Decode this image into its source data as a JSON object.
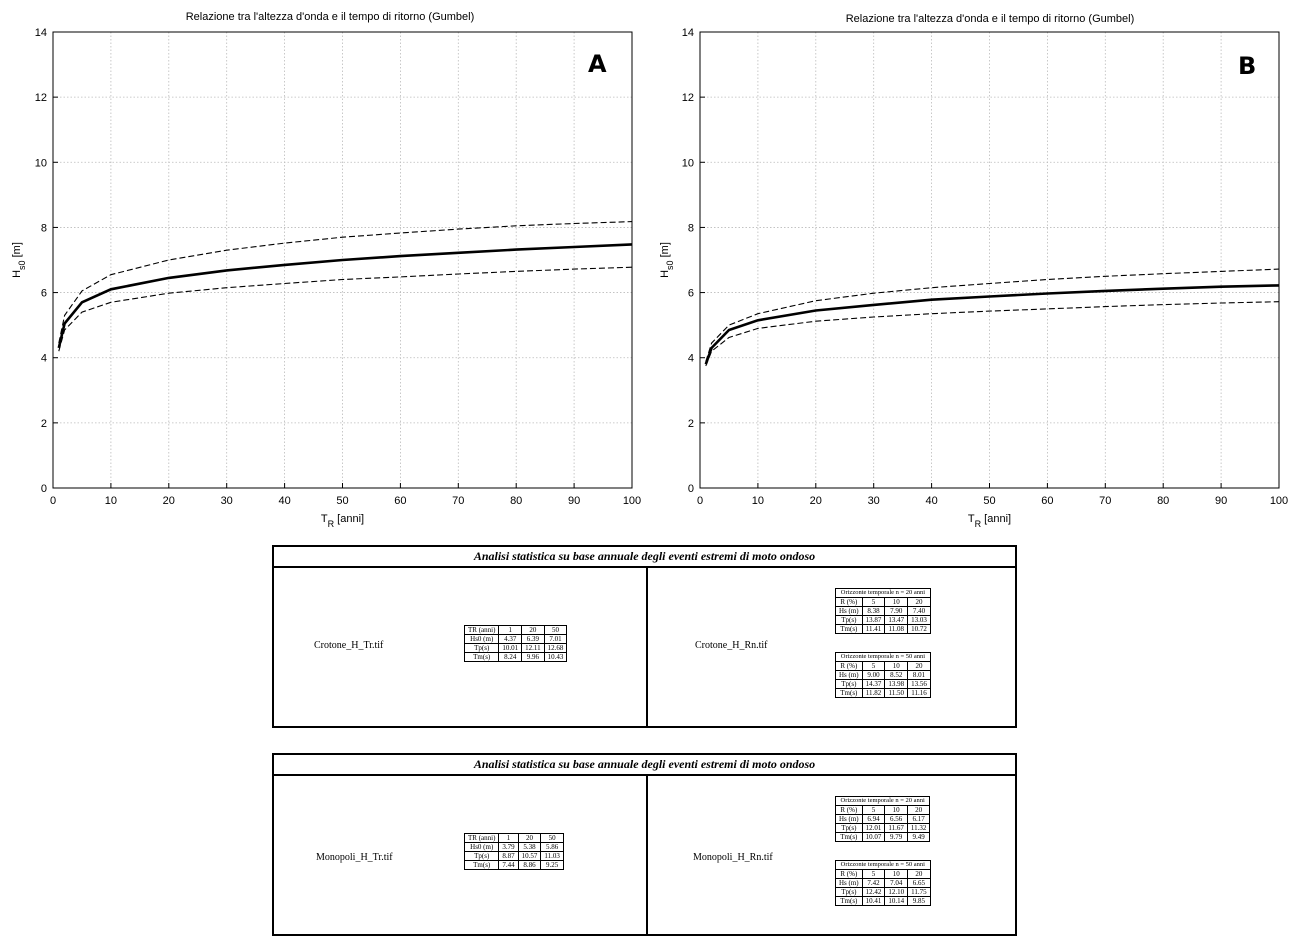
{
  "charts": [
    {
      "id": "A",
      "title": "Relazione tra l'altezza d'onda e il tempo di ritorno (Gumbel)",
      "panel_label": "A",
      "ylabel": "Hs0 [m]",
      "xlabel": "TR [anni]"
    },
    {
      "id": "B",
      "title": "Relazione tra l'altezza d'onda e il tempo di ritorno (Gumbel)",
      "panel_label": "B",
      "ylabel": "Hs0 [m]",
      "xlabel": "TR [anni]"
    }
  ],
  "chart_data": [
    {
      "type": "line",
      "title": "Relazione tra l'altezza d'onda e il tempo di ritorno (Gumbel)",
      "xlabel": "TR [anni]",
      "ylabel": "Hs0 [m]",
      "xlim": [
        0,
        100
      ],
      "ylim": [
        0,
        14
      ],
      "xticks": [
        0,
        10,
        20,
        30,
        40,
        50,
        60,
        70,
        80,
        90,
        100
      ],
      "yticks": [
        0,
        2,
        4,
        6,
        8,
        10,
        12,
        14
      ],
      "grid": true,
      "x": [
        1,
        2,
        5,
        10,
        20,
        30,
        40,
        50,
        60,
        70,
        80,
        90,
        100
      ],
      "series": [
        {
          "style": "solid-thick",
          "values": [
            4.3,
            5.05,
            5.7,
            6.1,
            6.45,
            6.68,
            6.85,
            7.0,
            7.12,
            7.22,
            7.32,
            7.4,
            7.48
          ]
        },
        {
          "style": "dashed-upper",
          "values": [
            4.45,
            5.3,
            6.05,
            6.55,
            7.0,
            7.3,
            7.52,
            7.7,
            7.83,
            7.95,
            8.05,
            8.12,
            8.18
          ]
        },
        {
          "style": "dashed-lower",
          "values": [
            4.2,
            4.85,
            5.4,
            5.7,
            5.98,
            6.15,
            6.28,
            6.4,
            6.48,
            6.57,
            6.65,
            6.72,
            6.78
          ]
        }
      ]
    },
    {
      "type": "line",
      "title": "Relazione tra l'altezza d'onda e il tempo di ritorno (Gumbel)",
      "xlabel": "TR [anni]",
      "ylabel": "Hs0 [m]",
      "xlim": [
        0,
        100
      ],
      "ylim": [
        0,
        14
      ],
      "xticks": [
        0,
        10,
        20,
        30,
        40,
        50,
        60,
        70,
        80,
        90,
        100
      ],
      "yticks": [
        0,
        2,
        4,
        6,
        8,
        10,
        12,
        14
      ],
      "grid": true,
      "x": [
        1,
        2,
        5,
        10,
        20,
        30,
        40,
        50,
        60,
        70,
        80,
        90,
        100
      ],
      "series": [
        {
          "style": "solid-thick",
          "values": [
            3.8,
            4.3,
            4.85,
            5.15,
            5.45,
            5.62,
            5.78,
            5.88,
            5.97,
            6.05,
            6.12,
            6.18,
            6.22
          ]
        },
        {
          "style": "dashed-upper",
          "values": [
            3.88,
            4.45,
            5.0,
            5.35,
            5.75,
            5.98,
            6.15,
            6.28,
            6.4,
            6.5,
            6.58,
            6.65,
            6.72
          ]
        },
        {
          "style": "dashed-lower",
          "values": [
            3.75,
            4.2,
            4.62,
            4.9,
            5.12,
            5.25,
            5.35,
            5.43,
            5.5,
            5.57,
            5.63,
            5.68,
            5.72
          ]
        }
      ]
    }
  ],
  "boxes": [
    {
      "title": "Analisi statistica su base annuale degli eventi estremi di moto ondoso",
      "left_file": "Crotone_H_Tr.tif",
      "left_table": [
        [
          "TR (anni)",
          "1",
          "20",
          "50"
        ],
        [
          "Hs0 (m)",
          "4.37",
          "6.39",
          "7.01"
        ],
        [
          "Tp(s)",
          "10.01",
          "12.11",
          "12.68"
        ],
        [
          "Tm(s)",
          "8.24",
          "9.96",
          "10.43"
        ]
      ],
      "right_file": "Crotone_H_Rn.tif",
      "right_tables": [
        {
          "caption": "Orizzonte temporale  n = 20 anni",
          "rows": [
            [
              "R (%)",
              "5",
              "10",
              "20"
            ],
            [
              "Hs (m)",
              "8.38",
              "7.90",
              "7.40"
            ],
            [
              "Tp(s)",
              "13.87",
              "13.47",
              "13.03"
            ],
            [
              "Tm(s)",
              "11.41",
              "11.08",
              "10.72"
            ]
          ]
        },
        {
          "caption": "Orizzonte temporale  n = 50 anni",
          "rows": [
            [
              "R (%)",
              "5",
              "10",
              "20"
            ],
            [
              "Hs (m)",
              "9.00",
              "8.52",
              "8.01"
            ],
            [
              "Tp(s)",
              "14.37",
              "13.98",
              "13.56"
            ],
            [
              "Tm(s)",
              "11.82",
              "11.50",
              "11.16"
            ]
          ]
        }
      ]
    },
    {
      "title": "Analisi statistica su base annuale degli eventi estremi di moto ondoso",
      "left_file": "Monopoli_H_Tr.tif",
      "left_table": [
        [
          "TR (anni)",
          "1",
          "20",
          "50"
        ],
        [
          "Hs0 (m)",
          "3.79",
          "5.38",
          "5.86"
        ],
        [
          "Tp(s)",
          "8.87",
          "10.57",
          "11.03"
        ],
        [
          "Tm(s)",
          "7.44",
          "8.86",
          "9.25"
        ]
      ],
      "right_file": "Monopoli_H_Rn.tif",
      "right_tables": [
        {
          "caption": "Orizzonte temporale  n = 20 anni",
          "rows": [
            [
              "R (%)",
              "5",
              "10",
              "20"
            ],
            [
              "Hs (m)",
              "6.94",
              "6.56",
              "6.17"
            ],
            [
              "Tp(s)",
              "12.01",
              "11.67",
              "11.32"
            ],
            [
              "Tm(s)",
              "10.07",
              "9.79",
              "9.49"
            ]
          ]
        },
        {
          "caption": "Orizzonte temporale  n = 50 anni",
          "rows": [
            [
              "R (%)",
              "5",
              "10",
              "20"
            ],
            [
              "Hs (m)",
              "7.42",
              "7.04",
              "6.65"
            ],
            [
              "Tp(s)",
              "12.42",
              "12.10",
              "11.75"
            ],
            [
              "Tm(s)",
              "10.41",
              "10.14",
              "9.85"
            ]
          ]
        }
      ]
    }
  ]
}
